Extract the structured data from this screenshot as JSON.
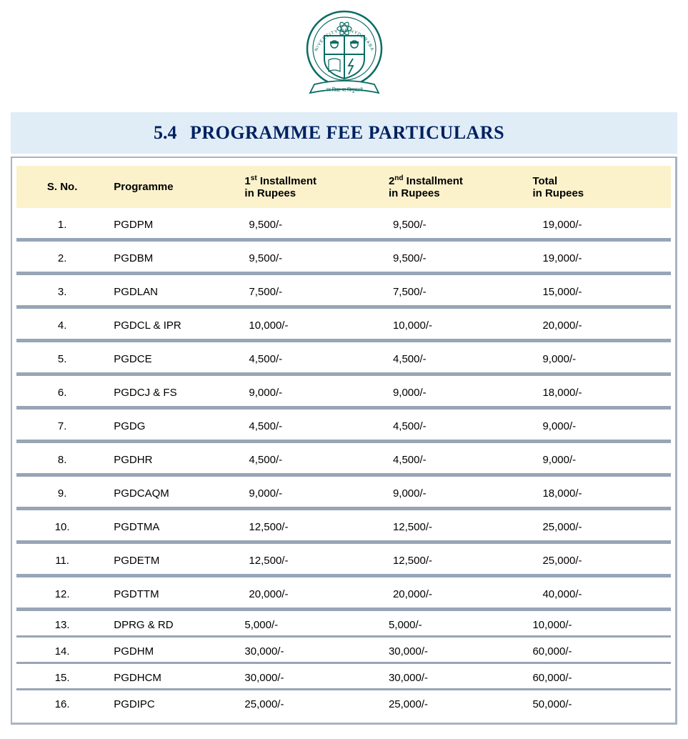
{
  "logo": {
    "outer_text_top": "UNIVERSITY OF HYDERABAD",
    "motto": "सा विद्या या विमुक्तये",
    "stroke_color": "#0a6b63",
    "fill_color": "#ffffff"
  },
  "header": {
    "section_number": "5.4",
    "section_title": "PROGRAMME FEE PARTICULARS",
    "background_color": "#e0edf7",
    "text_color": "#002060",
    "font_family": "Georgia, serif",
    "font_size_pt": 20
  },
  "table": {
    "header_background": "#fbf2cc",
    "row_separator_color": "#97a5b6",
    "border_color": "#a8b4c0",
    "font_size_pt": 11,
    "columns": [
      {
        "key": "sno",
        "label": "S. No.",
        "width_pct": 14,
        "align": "center"
      },
      {
        "key": "prog",
        "label": "Programme",
        "width_pct": 20,
        "align": "left"
      },
      {
        "key": "inst1",
        "label_html": "1<sup>st</sup> Installment<br>in Rupees",
        "width_pct": 22,
        "align": "left"
      },
      {
        "key": "inst2",
        "label_html": "2<sup>nd</sup> Installment<br>in Rupees",
        "width_pct": 22,
        "align": "left"
      },
      {
        "key": "total",
        "label_html": "Total<br>in Rupees",
        "width_pct": 22,
        "align": "left"
      }
    ],
    "rows": [
      {
        "sno": "1.",
        "prog": "PGDPM",
        "inst1": "9,500/-",
        "inst2": "9,500/-",
        "total": "19,000/-",
        "tight": false
      },
      {
        "sno": "2.",
        "prog": "PGDBM",
        "inst1": "9,500/-",
        "inst2": "9,500/-",
        "total": "19,000/-",
        "tight": false
      },
      {
        "sno": "3.",
        "prog": "PGDLAN",
        "inst1": "7,500/-",
        "inst2": "7,500/-",
        "total": "15,000/-",
        "tight": false
      },
      {
        "sno": "4.",
        "prog": "PGDCL & IPR",
        "inst1": "10,000/-",
        "inst2": "10,000/-",
        "total": "20,000/-",
        "tight": false
      },
      {
        "sno": "5.",
        "prog": "PGDCE",
        "inst1": "4,500/-",
        "inst2": "4,500/-",
        "total": " 9,000/-",
        "tight": false
      },
      {
        "sno": "6.",
        "prog": "PGDCJ & FS",
        "inst1": "9,000/-",
        "inst2": "9,000/-",
        "total": "18,000/-",
        "tight": false
      },
      {
        "sno": "7.",
        "prog": "PGDG",
        "inst1": "4,500/-",
        "inst2": "4,500/-",
        "total": " 9,000/-",
        "tight": false
      },
      {
        "sno": "8.",
        "prog": "PGDHR",
        "inst1": "4,500/-",
        "inst2": "4,500/-",
        "total": " 9,000/-",
        "tight": false
      },
      {
        "sno": "9.",
        "prog": "PGDCAQM",
        "inst1": "9,000/-",
        "inst2": "9,000/-",
        "total": "18,000/-",
        "tight": false
      },
      {
        "sno": "10.",
        "prog": "PGDTMA",
        "inst1": "12,500/-",
        "inst2": "12,500/-",
        "total": "25,000/-",
        "tight": false
      },
      {
        "sno": "11.",
        "prog": "PGDETM",
        "inst1": "12,500/-",
        "inst2": "12,500/-",
        "total": "25,000/-",
        "tight": false
      },
      {
        "sno": "12.",
        "prog": "PGDTTM",
        "inst1": "20,000/-",
        "inst2": "20,000/-",
        "total": "40,000/-",
        "tight": false
      },
      {
        "sno": "13.",
        "prog": "DPRG & RD",
        "inst1": "5,000/-",
        "inst2": "5,000/-",
        "total": "10,000/-",
        "tight": true
      },
      {
        "sno": "14.",
        "prog": "PGDHM",
        "inst1": "30,000/-",
        "inst2": "30,000/-",
        "total": "60,000/-",
        "tight": true
      },
      {
        "sno": "15.",
        "prog": "PGDHCM",
        "inst1": "30,000/-",
        "inst2": "30,000/-",
        "total": "60,000/-",
        "tight": true
      },
      {
        "sno": "16.",
        "prog": "PGDIPC",
        "inst1": "25,000/-",
        "inst2": "25,000/-",
        "total": "50,000/-",
        "tight": true
      }
    ]
  }
}
